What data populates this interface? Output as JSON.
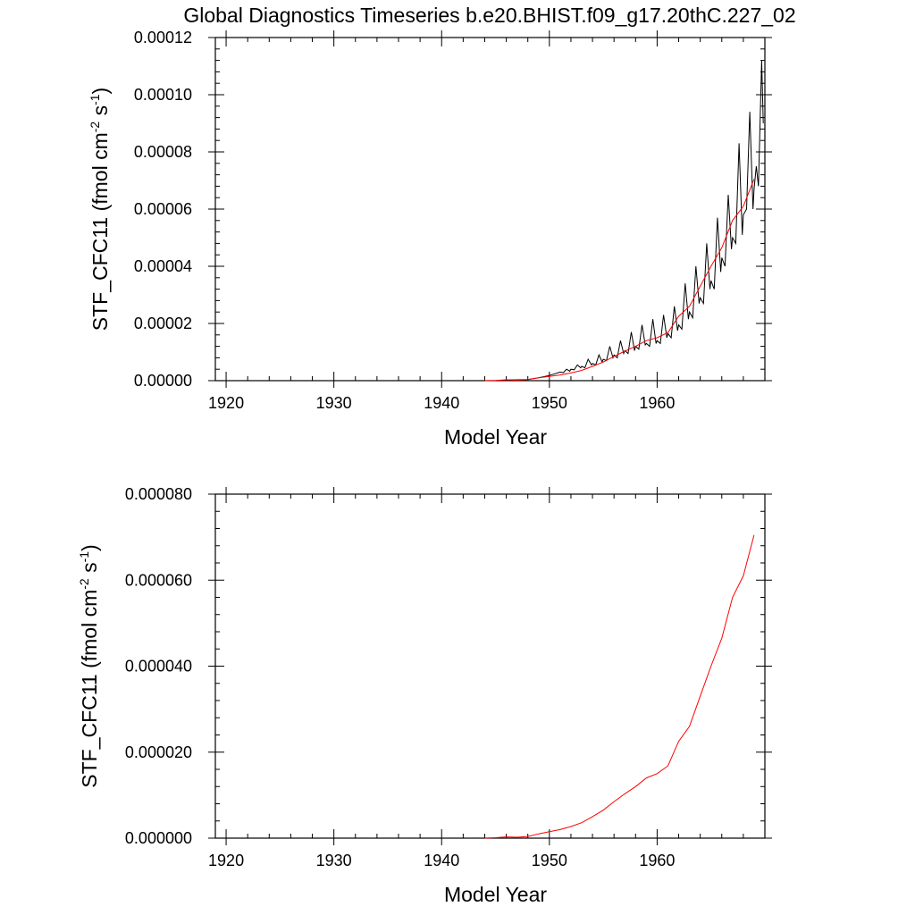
{
  "figure_title": "Global Diagnostics Timeseries b.e20.BHIST.f09_g17.20thC.227_02",
  "chart_data": [
    {
      "type": "line",
      "title": "Global Diagnostics Timeseries b.e20.BHIST.f09_g17.20thC.227_02",
      "xlabel": "Model Year",
      "ylabel_parts": [
        "STF_CFC11 (fmol cm",
        "-2",
        " s",
        "-1",
        ")"
      ],
      "xlim": [
        1919,
        1970
      ],
      "ylim": [
        0,
        0.00012
      ],
      "x_ticks": [
        1920,
        1930,
        1940,
        1950,
        1960
      ],
      "x_tick_labels": [
        "1920",
        "1930",
        "1940",
        "1950",
        "1960"
      ],
      "y_ticks": [
        0,
        2e-05,
        4e-05,
        6e-05,
        8e-05,
        0.0001,
        0.00012
      ],
      "y_tick_labels": [
        "0.00000",
        "0.00002",
        "0.00004",
        "0.00006",
        "0.00008",
        "0.00010",
        "0.00012"
      ],
      "grid": false,
      "series": [
        {
          "color": "#000000",
          "points": [
            [
              1919,
              0
            ],
            [
              1944,
              0
            ],
            [
              1945,
              0
            ],
            [
              1946,
              2e-07
            ],
            [
              1947,
              3e-07
            ],
            [
              1948,
              4e-07
            ],
            [
              1949,
              1e-06
            ],
            [
              1949.5,
              1.4e-06
            ],
            [
              1950,
              1.8e-06
            ],
            [
              1950.5,
              2.4e-06
            ],
            [
              1951,
              3e-06
            ],
            [
              1951.3,
              2.8e-06
            ],
            [
              1951.6,
              4e-06
            ],
            [
              1951.9,
              3.3e-06
            ],
            [
              1952,
              4e-06
            ],
            [
              1952.3,
              3.8e-06
            ],
            [
              1952.6,
              5.5e-06
            ],
            [
              1952.9,
              4.5e-06
            ],
            [
              1953,
              5e-06
            ],
            [
              1953.3,
              4.5e-06
            ],
            [
              1953.6,
              7.5e-06
            ],
            [
              1953.9,
              5.5e-06
            ],
            [
              1954,
              6e-06
            ],
            [
              1954.3,
              5.5e-06
            ],
            [
              1954.6,
              9e-06
            ],
            [
              1954.9,
              6.5e-06
            ],
            [
              1955,
              7.5e-06
            ],
            [
              1955.3,
              7e-06
            ],
            [
              1955.6,
              1.2e-05
            ],
            [
              1955.9,
              8e-06
            ],
            [
              1956,
              9e-06
            ],
            [
              1956.3,
              8e-06
            ],
            [
              1956.6,
              1.4e-05
            ],
            [
              1956.9,
              9.5e-06
            ],
            [
              1957,
              1.05e-05
            ],
            [
              1957.3,
              9.5e-06
            ],
            [
              1957.6,
              1.7e-05
            ],
            [
              1957.9,
              1.05e-05
            ],
            [
              1958,
              1.2e-05
            ],
            [
              1958.3,
              1.1e-05
            ],
            [
              1958.6,
              1.95e-05
            ],
            [
              1958.9,
              1.25e-05
            ],
            [
              1959,
              1.3e-05
            ],
            [
              1959.3,
              1.2e-05
            ],
            [
              1959.6,
              2.15e-05
            ],
            [
              1959.9,
              1.3e-05
            ],
            [
              1960,
              1.4e-05
            ],
            [
              1960.3,
              1.3e-05
            ],
            [
              1960.6,
              2.3e-05
            ],
            [
              1960.9,
              1.5e-05
            ],
            [
              1961,
              1.65e-05
            ],
            [
              1961.3,
              1.5e-05
            ],
            [
              1961.6,
              2.6e-05
            ],
            [
              1961.9,
              1.75e-05
            ],
            [
              1962,
              1.95e-05
            ],
            [
              1962.3,
              1.8e-05
            ],
            [
              1962.6,
              3.4e-05
            ],
            [
              1962.9,
              2.15e-05
            ],
            [
              1963,
              2.4e-05
            ],
            [
              1963.3,
              2.2e-05
            ],
            [
              1963.6,
              4e-05
            ],
            [
              1963.9,
              2.7e-05
            ],
            [
              1964,
              2.9e-05
            ],
            [
              1964.3,
              2.7e-05
            ],
            [
              1964.6,
              4.8e-05
            ],
            [
              1964.9,
              3.2e-05
            ],
            [
              1965,
              3.5e-05
            ],
            [
              1965.3,
              3.2e-05
            ],
            [
              1965.6,
              5.7e-05
            ],
            [
              1965.9,
              3.8e-05
            ],
            [
              1966,
              4.3e-05
            ],
            [
              1966.3,
              4e-05
            ],
            [
              1966.6,
              6.5e-05
            ],
            [
              1966.9,
              4.6e-05
            ],
            [
              1967,
              5e-05
            ],
            [
              1967.3,
              4.8e-05
            ],
            [
              1967.6,
              8.3e-05
            ],
            [
              1967.9,
              5.1e-05
            ],
            [
              1968,
              5.8e-05
            ],
            [
              1968.3,
              6e-05
            ],
            [
              1968.6,
              9.4e-05
            ],
            [
              1968.9,
              6e-05
            ],
            [
              1969,
              6.7e-05
            ],
            [
              1969.2,
              7.5e-05
            ],
            [
              1969.4,
              6.8e-05
            ],
            [
              1969.7,
              0.000112
            ],
            [
              1969.85,
              9e-05
            ]
          ]
        },
        {
          "color": "#ff0000",
          "points": [
            [
              1944,
              0
            ],
            [
              1945,
              1e-07
            ],
            [
              1946,
              3e-07
            ],
            [
              1947,
              2e-07
            ],
            [
              1948,
              4e-07
            ],
            [
              1949,
              1e-06
            ],
            [
              1950,
              1.5e-06
            ],
            [
              1951,
              2e-06
            ],
            [
              1952,
              2.7e-06
            ],
            [
              1953,
              3.6e-06
            ],
            [
              1954,
              5e-06
            ],
            [
              1955,
              6.5e-06
            ],
            [
              1956,
              8.5e-06
            ],
            [
              1957,
              1.03e-05
            ],
            [
              1958,
              1.2e-05
            ],
            [
              1959,
              1.4e-05
            ],
            [
              1960,
              1.5e-05
            ],
            [
              1961,
              1.68e-05
            ],
            [
              1962,
              2.25e-05
            ],
            [
              1963,
              2.6e-05
            ],
            [
              1964,
              3.3e-05
            ],
            [
              1965,
              4e-05
            ],
            [
              1966,
              4.65e-05
            ],
            [
              1967,
              5.6e-05
            ],
            [
              1968,
              6.1e-05
            ],
            [
              1969,
              7.05e-05
            ]
          ]
        }
      ]
    },
    {
      "type": "line",
      "title": "",
      "xlabel": "Model Year",
      "ylabel_parts": [
        "STF_CFC11 (fmol cm",
        "-2",
        " s",
        "-1",
        ")"
      ],
      "xlim": [
        1919,
        1970
      ],
      "ylim": [
        0,
        8e-05
      ],
      "x_ticks": [
        1920,
        1930,
        1940,
        1950,
        1960
      ],
      "x_tick_labels": [
        "1920",
        "1930",
        "1940",
        "1950",
        "1960"
      ],
      "y_ticks": [
        0,
        2e-05,
        4e-05,
        6e-05,
        8e-05
      ],
      "y_tick_labels": [
        "0.000000",
        "0.000020",
        "0.000040",
        "0.000060",
        "0.000080"
      ],
      "grid": false,
      "series": [
        {
          "color": "#ff0000",
          "points": [
            [
              1944,
              0
            ],
            [
              1945,
              1e-07
            ],
            [
              1946,
              3e-07
            ],
            [
              1947,
              2e-07
            ],
            [
              1948,
              4e-07
            ],
            [
              1949,
              1e-06
            ],
            [
              1950,
              1.5e-06
            ],
            [
              1951,
              2e-06
            ],
            [
              1952,
              2.7e-06
            ],
            [
              1953,
              3.6e-06
            ],
            [
              1954,
              5e-06
            ],
            [
              1955,
              6.5e-06
            ],
            [
              1956,
              8.5e-06
            ],
            [
              1957,
              1.03e-05
            ],
            [
              1958,
              1.2e-05
            ],
            [
              1959,
              1.4e-05
            ],
            [
              1960,
              1.5e-05
            ],
            [
              1961,
              1.68e-05
            ],
            [
              1962,
              2.25e-05
            ],
            [
              1963,
              2.6e-05
            ],
            [
              1964,
              3.3e-05
            ],
            [
              1965,
              4e-05
            ],
            [
              1966,
              4.65e-05
            ],
            [
              1967,
              5.6e-05
            ],
            [
              1968,
              6.1e-05
            ],
            [
              1969,
              7.05e-05
            ]
          ]
        }
      ]
    }
  ]
}
